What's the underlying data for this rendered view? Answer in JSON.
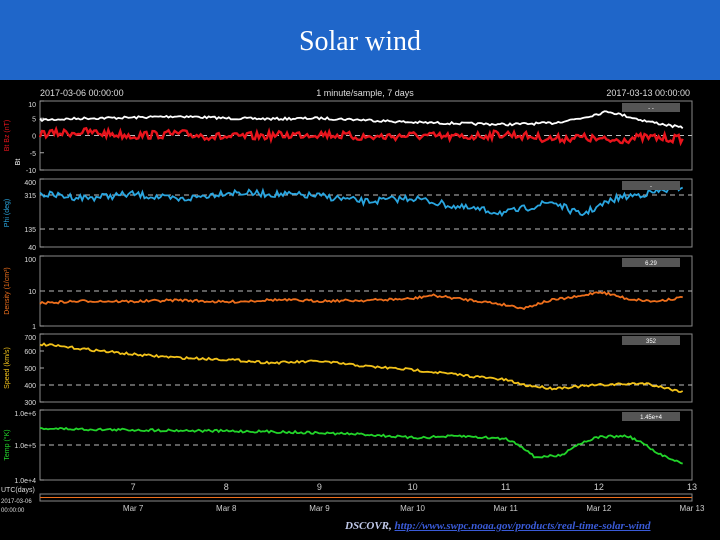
{
  "slide": {
    "title": "Solar wind",
    "footer_source": "DSCOVR,",
    "footer_link": "http://www.swpc.noaa.gov/products/real-time-solar-wind"
  },
  "colors": {
    "header_bg": "#1f66c9",
    "bt": "#ffffff",
    "bz": "#e8141c",
    "phi": "#2aa6e0",
    "density": "#ee6f1c",
    "speed": "#f2c21a",
    "temp": "#22d42a"
  },
  "chart_data": {
    "type": "line",
    "header": {
      "start": "2017-03-06 00:00:00",
      "center": "1 minute/sample, 7 days",
      "end": "2017-03-13 00:00:00"
    },
    "x_label": "UTC(days)",
    "x_bottom_label_1": "2017-03-06",
    "x_bottom_label_2": "00:00:00",
    "x_range_days": [
      6,
      13
    ],
    "x_ticks_top": [
      "7",
      "8",
      "9",
      "10",
      "11",
      "12",
      "13"
    ],
    "x_ticks_bottom": [
      "Mar 7",
      "Mar 8",
      "Mar 9",
      "Mar 10",
      "Mar 11",
      "Mar 12",
      "Mar 13"
    ],
    "panels": [
      {
        "key": "mag",
        "ylabel": "Bt  Bz  (nT)",
        "side_label": "Bt",
        "yscale": "linear",
        "ylim": [
          -10,
          10
        ],
        "yticks": [
          "10",
          "5",
          "0",
          "-5",
          "-10"
        ],
        "dashed": [
          0
        ],
        "readout": "- -",
        "series": [
          {
            "name": "Bt",
            "x": [
              6.0,
              6.5,
              7.0,
              7.5,
              8.0,
              8.5,
              9.0,
              9.5,
              10.0,
              10.5,
              11.0,
              11.5,
              11.8,
              12.1,
              12.5,
              12.9
            ],
            "y": [
              4.5,
              5.0,
              5.2,
              5.6,
              5.0,
              4.8,
              5.0,
              4.5,
              3.8,
              3.5,
              3.2,
              3.6,
              5.0,
              7.0,
              4.2,
              2.2
            ]
          },
          {
            "name": "Bz",
            "x": [
              6.0,
              6.5,
              7.0,
              7.5,
              8.0,
              8.5,
              9.0,
              9.5,
              10.0,
              10.5,
              11.0,
              11.5,
              11.8,
              12.1,
              12.5,
              12.9
            ],
            "y": [
              0.5,
              1.0,
              0.0,
              0.5,
              -0.5,
              0.0,
              0.5,
              -0.5,
              0.0,
              -0.5,
              0.5,
              -1.0,
              -0.5,
              -1.5,
              -0.5,
              -1.0
            ]
          }
        ]
      },
      {
        "key": "phi",
        "ylabel": "Phi  (deg)",
        "yscale": "linear",
        "ylim": [
          40,
          400
        ],
        "yticks": [
          "400",
          "315",
          "135",
          "40"
        ],
        "dashed": [
          135,
          315
        ],
        "readout": "-",
        "series": [
          {
            "name": "Phi",
            "x": [
              6.0,
              6.5,
              7.0,
              7.5,
              8.0,
              8.5,
              9.0,
              9.5,
              10.0,
              10.5,
              11.0,
              11.5,
              11.8,
              12.2,
              12.6,
              12.9
            ],
            "y": [
              320,
              300,
              320,
              290,
              330,
              320,
              310,
              280,
              300,
              250,
              220,
              280,
              210,
              300,
              330,
              360
            ]
          }
        ]
      },
      {
        "key": "density",
        "ylabel": "Density  (1/cm³)",
        "yscale": "log",
        "ylim": [
          1,
          100
        ],
        "yticks": [
          "100",
          "10",
          "1"
        ],
        "dashed": [
          10
        ],
        "readout": "6.29",
        "series": [
          {
            "name": "Density",
            "x": [
              6.0,
              6.5,
              7.0,
              7.5,
              8.0,
              8.5,
              9.0,
              9.5,
              10.0,
              10.2,
              10.5,
              11.0,
              11.2,
              11.5,
              11.8,
              12.0,
              12.3,
              12.6,
              12.9
            ],
            "y": [
              4.5,
              5.2,
              5.0,
              5.5,
              4.8,
              5.6,
              5.2,
              5.4,
              6.0,
              7.5,
              6.0,
              4.0,
              3.2,
              5.5,
              7.0,
              9.5,
              6.0,
              5.0,
              6.5
            ]
          }
        ]
      },
      {
        "key": "speed",
        "ylabel": "Speed  (km/s)",
        "yscale": "linear",
        "ylim": [
          300,
          700
        ],
        "yticks": [
          "700",
          "600",
          "500",
          "400",
          "300"
        ],
        "dashed": [
          400
        ],
        "readout": "352",
        "series": [
          {
            "name": "Speed",
            "x": [
              6.0,
              6.5,
              7.0,
              7.5,
              8.0,
              8.5,
              9.0,
              9.5,
              10.0,
              10.5,
              11.0,
              11.2,
              11.5,
              12.0,
              12.5,
              12.9
            ],
            "y": [
              640,
              610,
              580,
              560,
              550,
              530,
              540,
              510,
              490,
              460,
              430,
              400,
              380,
              400,
              410,
              360
            ]
          }
        ]
      },
      {
        "key": "temp",
        "ylabel": "Temp  (°K)",
        "yscale": "log",
        "ylim": [
          10000,
          1000000
        ],
        "yticks": [
          "1.0e+6",
          "1.0e+5",
          "1.0e+4"
        ],
        "dashed": [
          100000
        ],
        "readout": "1.45e+4",
        "series": [
          {
            "name": "Temp",
            "x": [
              6.0,
              6.5,
              7.0,
              7.5,
              8.0,
              8.5,
              9.0,
              9.5,
              10.0,
              10.5,
              11.0,
              11.3,
              11.6,
              12.0,
              12.3,
              12.6,
              12.9
            ],
            "y": [
              300000,
              280000,
              270000,
              260000,
              250000,
              240000,
              220000,
              200000,
              160000,
              180000,
              150000,
              45000,
              50000,
              170000,
              180000,
              60000,
              28000
            ]
          }
        ]
      }
    ]
  }
}
